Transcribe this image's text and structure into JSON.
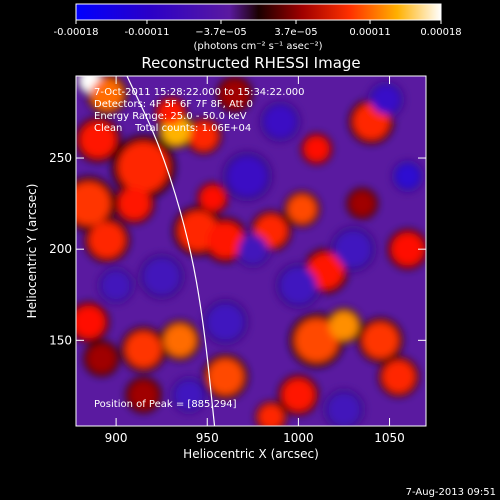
{
  "colorbar": {
    "ticks": [
      {
        "value": -0.00018,
        "label": "-0.00018"
      },
      {
        "value": -0.00011,
        "label": "-0.00011"
      },
      {
        "value": -3.7e-05,
        "label": "−3.7e−05"
      },
      {
        "value": 3.7e-05,
        "label": "3.7e−05"
      },
      {
        "value": 0.00011,
        "label": "0.00011"
      },
      {
        "value": 0.00018,
        "label": "0.00018"
      }
    ],
    "range": [
      -0.00018,
      0.00018
    ],
    "unit_label": "(photons cm⁻² s⁻¹ asec⁻²)"
  },
  "chart_data": {
    "type": "heatmap",
    "title": "Reconstructed RHESSI Image",
    "xlabel": "Heliocentric X (arcsec)",
    "ylabel": "Heliocentric Y (arcsec)",
    "xlim": [
      878,
      1070
    ],
    "ylim": [
      103,
      295
    ],
    "xticks": [
      900,
      950,
      1000,
      1050
    ],
    "yticks": [
      150,
      200,
      250
    ],
    "info_lines": [
      "7-Oct-2011 15:28:22.000 to 15:34:22.000",
      "Detectors: 4F 5F 6F 7F 8F, Att 0",
      "Energy Range: 25.0 - 50.0 keV",
      "Clean    Total counts: 1.06E+04"
    ],
    "peak_label": "Position of Peak = [885,294]",
    "peak": [
      885,
      294
    ],
    "limb_points": [
      [
        905,
        297
      ],
      [
        925,
        255
      ],
      [
        940,
        205
      ],
      [
        948,
        160
      ],
      [
        954,
        103
      ]
    ],
    "blobs": [
      {
        "x": 886,
        "y": 292,
        "r": 6,
        "v": 0.00018
      },
      {
        "x": 895,
        "y": 285,
        "r": 9,
        "v": 0.00012
      },
      {
        "x": 890,
        "y": 260,
        "r": 10,
        "v": 8e-05
      },
      {
        "x": 885,
        "y": 225,
        "r": 12,
        "v": 0.0001
      },
      {
        "x": 895,
        "y": 205,
        "r": 10,
        "v": 9e-05
      },
      {
        "x": 885,
        "y": 160,
        "r": 9,
        "v": 7e-05
      },
      {
        "x": 892,
        "y": 140,
        "r": 8,
        "v": 6e-05
      },
      {
        "x": 915,
        "y": 245,
        "r": 14,
        "v": 9e-05
      },
      {
        "x": 910,
        "y": 225,
        "r": 9,
        "v": 8e-05
      },
      {
        "x": 933,
        "y": 265,
        "r": 8,
        "v": 0.00014
      },
      {
        "x": 930,
        "y": 275,
        "r": 7,
        "v": 8e-05
      },
      {
        "x": 948,
        "y": 262,
        "r": 8,
        "v": 9e-05
      },
      {
        "x": 945,
        "y": 210,
        "r": 11,
        "v": 9e-05
      },
      {
        "x": 960,
        "y": 205,
        "r": 10,
        "v": 8e-05
      },
      {
        "x": 953,
        "y": 228,
        "r": 7,
        "v": 7e-05
      },
      {
        "x": 915,
        "y": 145,
        "r": 10,
        "v": 0.0001
      },
      {
        "x": 935,
        "y": 150,
        "r": 9,
        "v": 0.00012
      },
      {
        "x": 915,
        "y": 120,
        "r": 8,
        "v": 6e-05
      },
      {
        "x": 960,
        "y": 130,
        "r": 10,
        "v": 0.00011
      },
      {
        "x": 985,
        "y": 210,
        "r": 9,
        "v": 9e-05
      },
      {
        "x": 1002,
        "y": 222,
        "r": 8,
        "v": 0.00011
      },
      {
        "x": 1010,
        "y": 255,
        "r": 7,
        "v": 7e-05
      },
      {
        "x": 1040,
        "y": 270,
        "r": 10,
        "v": 9e-05
      },
      {
        "x": 1015,
        "y": 188,
        "r": 10,
        "v": 8e-05
      },
      {
        "x": 1010,
        "y": 150,
        "r": 12,
        "v": 0.00011
      },
      {
        "x": 1025,
        "y": 158,
        "r": 8,
        "v": 0.00013
      },
      {
        "x": 1045,
        "y": 150,
        "r": 10,
        "v": 0.0001
      },
      {
        "x": 1055,
        "y": 130,
        "r": 9,
        "v": 9e-05
      },
      {
        "x": 1000,
        "y": 120,
        "r": 9,
        "v": 8e-05
      },
      {
        "x": 985,
        "y": 108,
        "r": 7,
        "v": 9e-05
      },
      {
        "x": 1060,
        "y": 200,
        "r": 9,
        "v": 7e-05
      },
      {
        "x": 1035,
        "y": 225,
        "r": 7,
        "v": 6e-05
      },
      {
        "x": 965,
        "y": 285,
        "r": 8,
        "v": 6e-05
      },
      {
        "x": 925,
        "y": 185,
        "r": 10,
        "v": -6e-05
      },
      {
        "x": 960,
        "y": 160,
        "r": 10,
        "v": -7e-05
      },
      {
        "x": 972,
        "y": 240,
        "r": 11,
        "v": -8e-05
      },
      {
        "x": 1000,
        "y": 180,
        "r": 10,
        "v": -7e-05
      },
      {
        "x": 1060,
        "y": 240,
        "r": 7,
        "v": -0.00011
      },
      {
        "x": 1048,
        "y": 282,
        "r": 8,
        "v": -9e-05
      },
      {
        "x": 990,
        "y": 270,
        "r": 9,
        "v": -8e-05
      },
      {
        "x": 1030,
        "y": 200,
        "r": 10,
        "v": -7e-05
      },
      {
        "x": 1025,
        "y": 112,
        "r": 9,
        "v": -6e-05
      },
      {
        "x": 900,
        "y": 180,
        "r": 8,
        "v": -6e-05
      },
      {
        "x": 940,
        "y": 120,
        "r": 8,
        "v": -7e-05
      },
      {
        "x": 975,
        "y": 200,
        "r": 8,
        "v": -6e-05
      }
    ]
  },
  "footer": {
    "date": "7-Aug-2013 09:51"
  }
}
